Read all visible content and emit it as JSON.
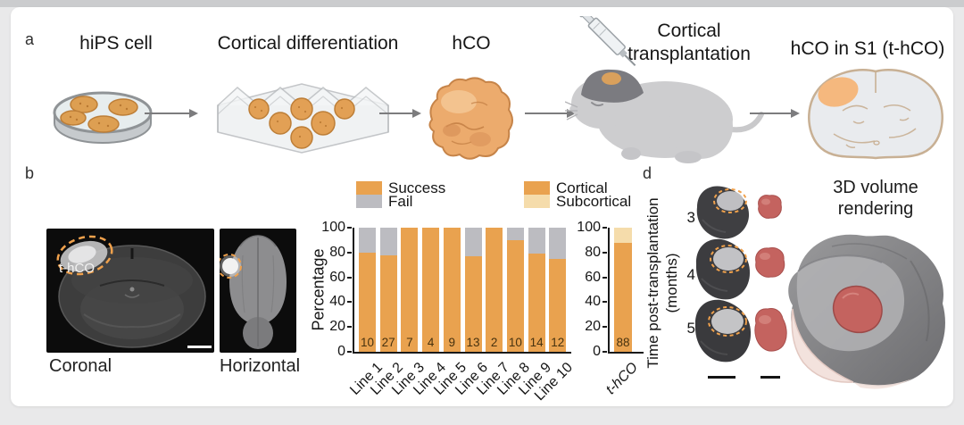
{
  "panels": {
    "a": {
      "label": "a",
      "steps": [
        {
          "title": "hiPS cell"
        },
        {
          "title": "Cortical differentiation"
        },
        {
          "title": "hCO"
        },
        {
          "title_line1": "Cortical",
          "title_line2": "transplantation"
        },
        {
          "title": "hCO in S1 (t-hCO)"
        }
      ]
    },
    "b": {
      "label": "b",
      "mri_annotation": "t-hCO",
      "coronal_caption": "Coronal",
      "horizontal_caption": "Horizontal"
    },
    "d": {
      "label": "d",
      "y_axis_label_line1": "Time post-transplantation",
      "y_axis_label_line2": "(months)",
      "months": [
        "3",
        "4",
        "5"
      ],
      "rendering_title_line1": "3D volume",
      "rendering_title_line2": "rendering"
    }
  },
  "chart_data": [
    {
      "type": "bar",
      "stacked": true,
      "ylabel": "Percentage",
      "ylim": [
        0,
        100
      ],
      "yticks": [
        0,
        20,
        40,
        60,
        80,
        100
      ],
      "categories": [
        "Line 1",
        "Line 2",
        "Line 3",
        "Line 4",
        "Line 5",
        "Line 6",
        "Line 7",
        "Line 8",
        "Line 9",
        "Line 10"
      ],
      "series": [
        {
          "name": "Success",
          "color": "#e9a24f",
          "values": [
            80,
            78,
            100,
            100,
            100,
            77,
            100,
            90,
            79,
            75
          ]
        },
        {
          "name": "Fail",
          "color": "#bcbcc1",
          "values": [
            20,
            22,
            0,
            0,
            0,
            23,
            0,
            10,
            21,
            25
          ]
        }
      ],
      "bar_counts": [
        10,
        27,
        7,
        4,
        9,
        13,
        2,
        10,
        14,
        12
      ],
      "legend": [
        "Success",
        "Fail"
      ],
      "legend_position": "top",
      "grid": false
    },
    {
      "type": "bar",
      "stacked": true,
      "ylabel": "",
      "ylim": [
        0,
        100
      ],
      "yticks": [
        0,
        20,
        40,
        60,
        80,
        100
      ],
      "categories": [
        "t-hCO"
      ],
      "series": [
        {
          "name": "Cortical",
          "color": "#e9a24f",
          "values": [
            88
          ]
        },
        {
          "name": "Subcortical",
          "color": "#f5dcab",
          "values": [
            12
          ]
        }
      ],
      "bar_counts": [
        88
      ],
      "legend": [
        "Cortical",
        "Subcortical"
      ],
      "legend_position": "top",
      "grid": false
    }
  ],
  "colors": {
    "success_orange": "#e9a24f",
    "fail_gray": "#bcbcc1",
    "subcortical_light": "#f5dcab",
    "annotation_orange": "#f0a14c",
    "graft_red": "#c4635f"
  }
}
